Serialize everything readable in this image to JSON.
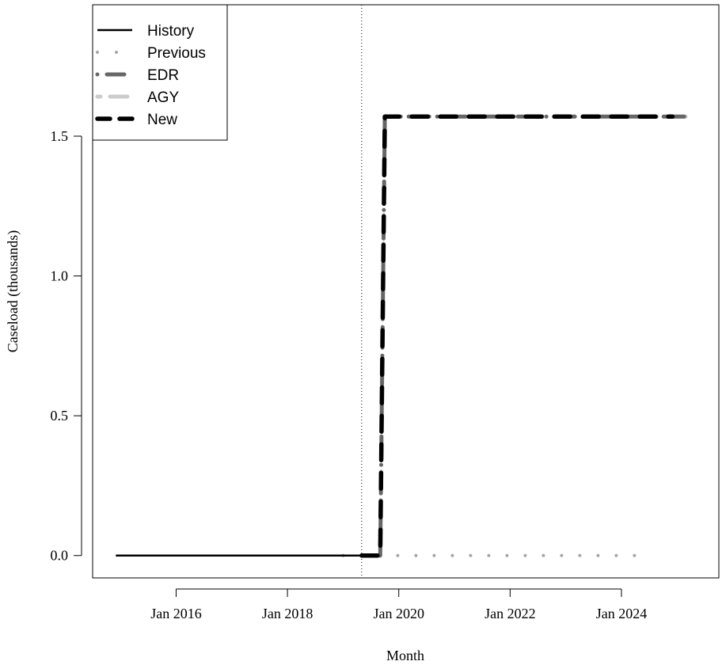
{
  "chart_data": {
    "type": "line",
    "xlabel": "Month",
    "ylabel": "Caseload (thousands)",
    "x_tick_labels": [
      "Jan 2016",
      "Jan 2018",
      "Jan 2020",
      "Jan 2022",
      "Jan 2024"
    ],
    "x_tick_values": [
      "2016-01",
      "2018-01",
      "2020-01",
      "2022-01",
      "2024-01"
    ],
    "y_tick_labels": [
      "0.0",
      "0.5",
      "1.0",
      "1.5"
    ],
    "y_tick_values": [
      0,
      0.5,
      1.0,
      1.5
    ],
    "xlim": [
      "2014-07",
      "2025-10"
    ],
    "ylim": [
      -0.08,
      1.97
    ],
    "vertical_reference_line": "2019-05",
    "legend_position": "top-left",
    "grid": false,
    "series": [
      {
        "name": "History",
        "style": "solid",
        "color": "#000000",
        "x": [
          "2014-12",
          "2019-05"
        ],
        "y": [
          0,
          0
        ]
      },
      {
        "name": "Previous",
        "style": "dotted",
        "color": "#a6a6a6",
        "x": [
          "2019-01",
          "2024-06"
        ],
        "y": [
          0,
          0
        ]
      },
      {
        "name": "EDR",
        "style": "dotdash",
        "color": "#666666",
        "x": [
          "2019-05",
          "2019-09",
          "2019-10",
          "2025-03"
        ],
        "y": [
          0,
          0,
          1.57,
          1.57
        ]
      },
      {
        "name": "AGY",
        "style": "dashed",
        "color": "#cccccc",
        "x": [
          "2019-05",
          "2019-09",
          "2019-10",
          "2025-03"
        ],
        "y": [
          0,
          0,
          1.57,
          1.57
        ]
      },
      {
        "name": "New",
        "style": "dashed",
        "color": "#000000",
        "x": [
          "2019-05",
          "2019-09",
          "2019-10",
          "2024-12"
        ],
        "y": [
          0,
          0,
          1.57,
          1.57
        ]
      }
    ]
  }
}
